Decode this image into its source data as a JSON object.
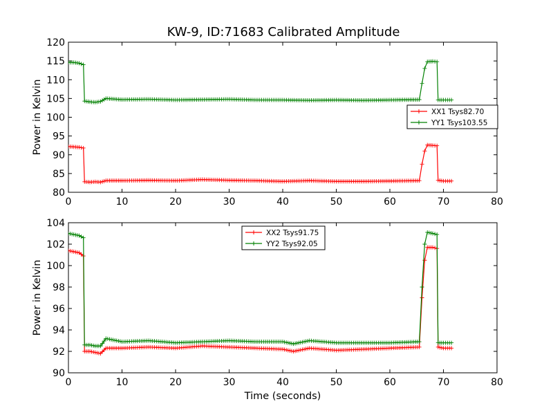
{
  "chart_data": [
    {
      "type": "line",
      "title": "KW-9, ID:71683 Calibrated Amplitude",
      "xlabel": "",
      "ylabel": "Power in Kelvin",
      "xlim": [
        0,
        80
      ],
      "ylim": [
        80,
        120
      ],
      "xticks": [
        "0",
        "10",
        "20",
        "30",
        "40",
        "50",
        "60",
        "70",
        "80"
      ],
      "yticks": [
        "80",
        "85",
        "90",
        "95",
        "100",
        "105",
        "110",
        "115",
        "120"
      ],
      "grid": false,
      "legend": "right",
      "series": [
        {
          "name": "XX1 Tsys82.70",
          "color": "#ff0000",
          "points": [
            [
              0,
              92.2
            ],
            [
              1,
              92.1
            ],
            [
              2,
              92.0
            ],
            [
              2.8,
              91.8
            ],
            [
              3.0,
              82.8
            ],
            [
              4,
              82.7
            ],
            [
              5,
              82.8
            ],
            [
              6,
              82.7
            ],
            [
              7,
              83.1
            ],
            [
              10,
              83.1
            ],
            [
              15,
              83.2
            ],
            [
              20,
              83.1
            ],
            [
              25,
              83.4
            ],
            [
              30,
              83.2
            ],
            [
              35,
              83.1
            ],
            [
              40,
              82.9
            ],
            [
              45,
              83.1
            ],
            [
              50,
              82.9
            ],
            [
              55,
              82.9
            ],
            [
              60,
              83.0
            ],
            [
              65.5,
              83.1
            ],
            [
              66,
              87.5
            ],
            [
              66.5,
              91.0
            ],
            [
              67,
              92.6
            ],
            [
              68,
              92.5
            ],
            [
              68.8,
              92.4
            ],
            [
              69.0,
              83.2
            ],
            [
              70,
              83.0
            ],
            [
              71.5,
              83.0
            ]
          ]
        },
        {
          "name": "YY1 Tsys103.55",
          "color": "#008000",
          "points": [
            [
              0,
              114.6
            ],
            [
              1,
              114.6
            ],
            [
              2,
              114.4
            ],
            [
              2.8,
              114.0
            ],
            [
              3.0,
              104.3
            ],
            [
              4,
              104.1
            ],
            [
              5,
              104.0
            ],
            [
              6,
              104.2
            ],
            [
              7,
              105.0
            ],
            [
              10,
              104.7
            ],
            [
              15,
              104.8
            ],
            [
              20,
              104.6
            ],
            [
              25,
              104.7
            ],
            [
              30,
              104.8
            ],
            [
              35,
              104.6
            ],
            [
              40,
              104.6
            ],
            [
              45,
              104.5
            ],
            [
              50,
              104.6
            ],
            [
              55,
              104.5
            ],
            [
              60,
              104.6
            ],
            [
              65.5,
              104.7
            ],
            [
              66,
              109.0
            ],
            [
              66.5,
              113.0
            ],
            [
              67,
              114.8
            ],
            [
              68,
              114.9
            ],
            [
              68.8,
              114.8
            ],
            [
              69.0,
              104.6
            ],
            [
              70,
              104.6
            ],
            [
              71.5,
              104.6
            ]
          ]
        }
      ]
    },
    {
      "type": "line",
      "title": "",
      "xlabel": "Time (seconds)",
      "ylabel": "Power in Kelvin",
      "xlim": [
        0,
        80
      ],
      "ylim": [
        90,
        104
      ],
      "xticks": [
        "0",
        "10",
        "20",
        "30",
        "40",
        "50",
        "60",
        "70",
        "80"
      ],
      "yticks": [
        "90",
        "92",
        "94",
        "96",
        "98",
        "100",
        "102",
        "104"
      ],
      "grid": false,
      "legend": "top-center",
      "series": [
        {
          "name": "XX2 Tsys91.75",
          "color": "#ff0000",
          "points": [
            [
              0,
              101.4
            ],
            [
              1,
              101.3
            ],
            [
              2,
              101.2
            ],
            [
              2.8,
              100.9
            ],
            [
              3.0,
              92.0
            ],
            [
              4,
              92.0
            ],
            [
              5,
              91.9
            ],
            [
              6,
              91.8
            ],
            [
              7,
              92.3
            ],
            [
              10,
              92.3
            ],
            [
              15,
              92.4
            ],
            [
              20,
              92.3
            ],
            [
              25,
              92.5
            ],
            [
              30,
              92.4
            ],
            [
              35,
              92.3
            ],
            [
              40,
              92.2
            ],
            [
              42,
              92.0
            ],
            [
              45,
              92.3
            ],
            [
              50,
              92.1
            ],
            [
              55,
              92.2
            ],
            [
              60,
              92.3
            ],
            [
              65.5,
              92.4
            ],
            [
              66,
              97.0
            ],
            [
              66.5,
              100.5
            ],
            [
              67,
              101.7
            ],
            [
              68,
              101.7
            ],
            [
              68.8,
              101.6
            ],
            [
              69.0,
              92.4
            ],
            [
              70,
              92.3
            ],
            [
              71.5,
              92.3
            ]
          ]
        },
        {
          "name": "YY2 Tsys92.05",
          "color": "#008000",
          "points": [
            [
              0,
              103.0
            ],
            [
              1,
              102.9
            ],
            [
              2,
              102.8
            ],
            [
              2.8,
              102.6
            ],
            [
              3.0,
              92.6
            ],
            [
              4,
              92.6
            ],
            [
              5,
              92.5
            ],
            [
              6,
              92.5
            ],
            [
              7,
              93.2
            ],
            [
              10,
              92.9
            ],
            [
              15,
              93.0
            ],
            [
              20,
              92.8
            ],
            [
              25,
              92.9
            ],
            [
              30,
              93.0
            ],
            [
              35,
              92.9
            ],
            [
              40,
              92.9
            ],
            [
              42,
              92.7
            ],
            [
              45,
              93.0
            ],
            [
              50,
              92.8
            ],
            [
              55,
              92.8
            ],
            [
              60,
              92.8
            ],
            [
              65.5,
              92.9
            ],
            [
              66,
              98.0
            ],
            [
              66.5,
              102.0
            ],
            [
              67,
              103.1
            ],
            [
              68,
              103.0
            ],
            [
              68.8,
              102.9
            ],
            [
              69.0,
              92.8
            ],
            [
              70,
              92.8
            ],
            [
              71.5,
              92.8
            ]
          ]
        }
      ]
    }
  ]
}
